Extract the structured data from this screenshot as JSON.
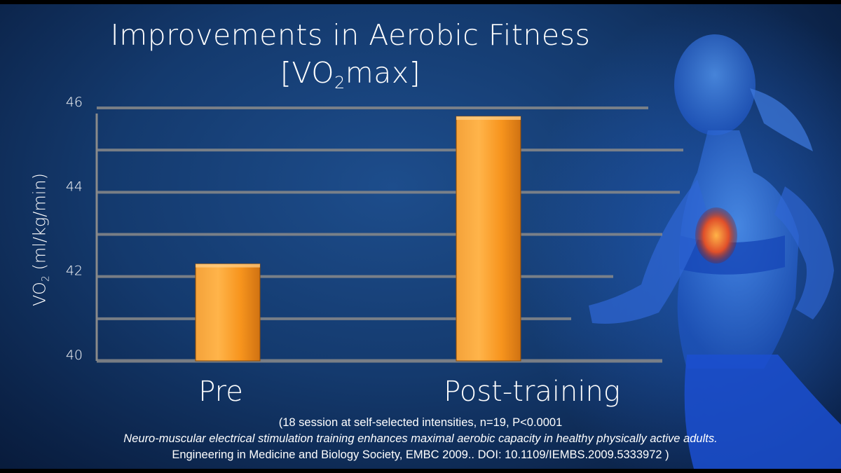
{
  "title": {
    "line1": "Improvements in Aerobic Fitness",
    "line2_pre": "[VO",
    "line2_sub": "2",
    "line2_post": "max]"
  },
  "axis": {
    "ylabel_pre": "VO",
    "ylabel_sub": "2",
    "ylabel_post": " (ml/kg/min)"
  },
  "chart_data": {
    "type": "bar",
    "categories": [
      "Pre",
      "Post-training"
    ],
    "values": [
      42.3,
      45.8
    ],
    "ylim": [
      40,
      46
    ],
    "yticks": [
      40,
      42,
      44,
      46
    ],
    "ylabel": "VO2 (ml/kg/min)",
    "title": "Improvements in Aerobic Fitness [VO2max]",
    "grid": true,
    "bar_color": "#f7941d"
  },
  "captions": {
    "line1": "(18 session at self-selected intensities, n=19, P<0.0001",
    "line2": "Neuro-muscular electrical stimulation training enhances maximal aerobic capacity in healthy physically active adults.",
    "line3": "Engineering in Medicine and Biology Society, EMBC 2009..  DOI: 10.1109/IEMBS.2009.5333972 )"
  },
  "colors": {
    "background": "#143a6e",
    "gridline": "#8a8a8a",
    "bar": "#f7941d",
    "text": "#ffffff"
  }
}
